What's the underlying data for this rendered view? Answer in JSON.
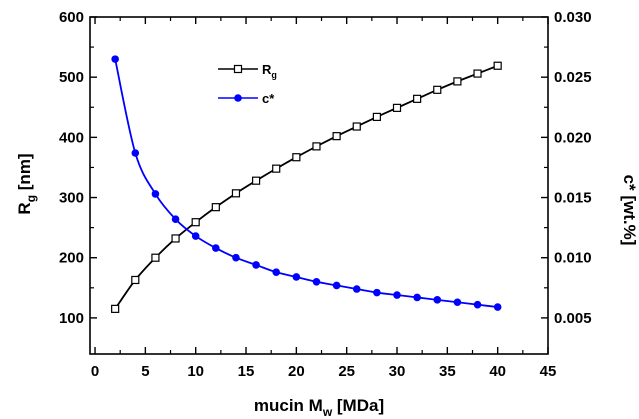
{
  "chart_data": {
    "type": "line",
    "xlabel": {
      "main": "mucin M",
      "sub": "w",
      "unit": " [MDa]"
    },
    "ylabel_left": {
      "main": "R",
      "sub": "g",
      "unit": " [nm]"
    },
    "ylabel_right": {
      "main": "c*",
      "unit": " [wt.%]"
    },
    "xlim": [
      -0.5,
      45
    ],
    "ylim_left": [
      40,
      600
    ],
    "ylim_right": [
      0.002,
      0.03
    ],
    "x_ticks": [
      0,
      5,
      10,
      15,
      20,
      25,
      30,
      35,
      40,
      45
    ],
    "y_left_ticks": [
      100,
      200,
      300,
      400,
      500,
      600
    ],
    "y_right_ticks": [
      0.005,
      0.01,
      0.015,
      0.02,
      0.025,
      0.03
    ],
    "y_right_tick_labels": [
      "0.005",
      "0.010",
      "0.015",
      "0.020",
      "0.025",
      "0.030"
    ],
    "grid": false,
    "legend_position": "top-center",
    "series": [
      {
        "name": "R",
        "name_sub": "g",
        "axis": "left",
        "color": "#000000",
        "marker": "open-square",
        "x": [
          2,
          4,
          6,
          8,
          10,
          12,
          14,
          16,
          18,
          20,
          22,
          24,
          26,
          28,
          30,
          32,
          34,
          36,
          38,
          40
        ],
        "y": [
          115,
          163,
          200,
          232,
          259,
          284,
          307,
          328,
          348,
          367,
          385,
          402,
          418,
          434,
          449,
          464,
          479,
          493,
          506,
          519
        ]
      },
      {
        "name": "c*",
        "axis": "right",
        "color": "#0000ff",
        "marker": "filled-circle",
        "x": [
          2,
          4,
          6,
          8,
          10,
          12,
          14,
          16,
          18,
          20,
          22,
          24,
          26,
          28,
          30,
          32,
          34,
          36,
          38,
          40
        ],
        "y": [
          0.0265,
          0.0187,
          0.0153,
          0.0132,
          0.0118,
          0.0108,
          0.01,
          0.0094,
          0.0088,
          0.0084,
          0.008,
          0.0077,
          0.0074,
          0.0071,
          0.0069,
          0.0067,
          0.0065,
          0.0063,
          0.0061,
          0.0059
        ]
      }
    ]
  }
}
